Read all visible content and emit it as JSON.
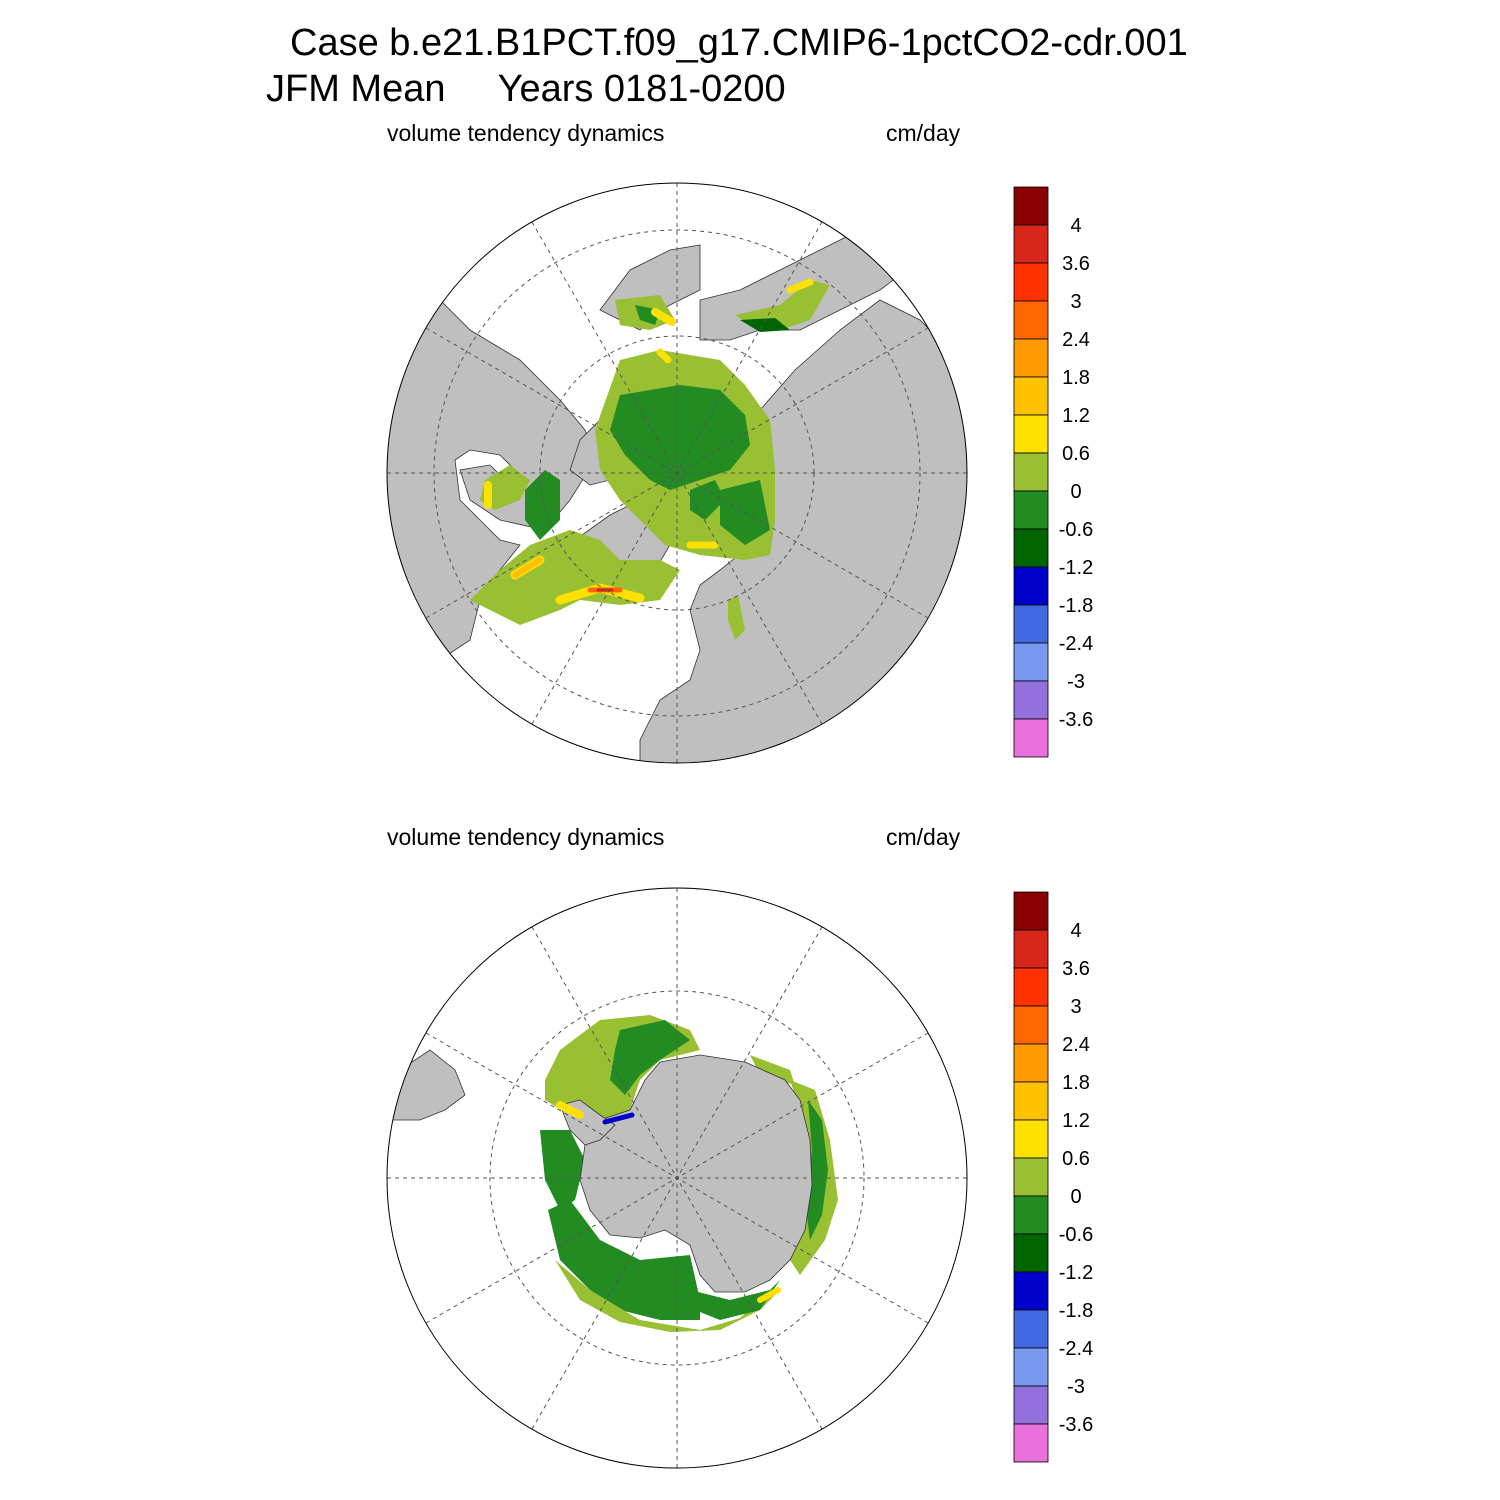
{
  "title": {
    "line1": "Case b.e21.B1PCT.f09_g17.CMIP6-1pctCO2-cdr.001",
    "line2": "JFM Mean     Years 0181-0200"
  },
  "panels": [
    {
      "id": "north",
      "hemisphere": "Northern",
      "variable": "volume tendency dynamics",
      "units": "cm/day"
    },
    {
      "id": "south",
      "hemisphere": "Southern",
      "variable": "volume tendency dynamics",
      "units": "cm/day"
    }
  ],
  "colorbar": {
    "labels": [
      "4",
      "3.6",
      "3",
      "2.4",
      "1.8",
      "1.2",
      "0.6",
      "0",
      "-0.6",
      "-1.2",
      "-1.8",
      "-2.4",
      "-3",
      "-3.6"
    ],
    "colors": [
      "#8b0000",
      "#d9261a",
      "#ff3300",
      "#ff6600",
      "#ff9900",
      "#ffc200",
      "#ffe100",
      "#99bf33",
      "#228b22",
      "#006400",
      "#0000cc",
      "#4169e1",
      "#7799ee",
      "#9370db",
      "#ea70dc"
    ]
  },
  "map_colors": {
    "land": "#bfbfbf",
    "ocean": "#ffffff",
    "grid": "#555555"
  }
}
